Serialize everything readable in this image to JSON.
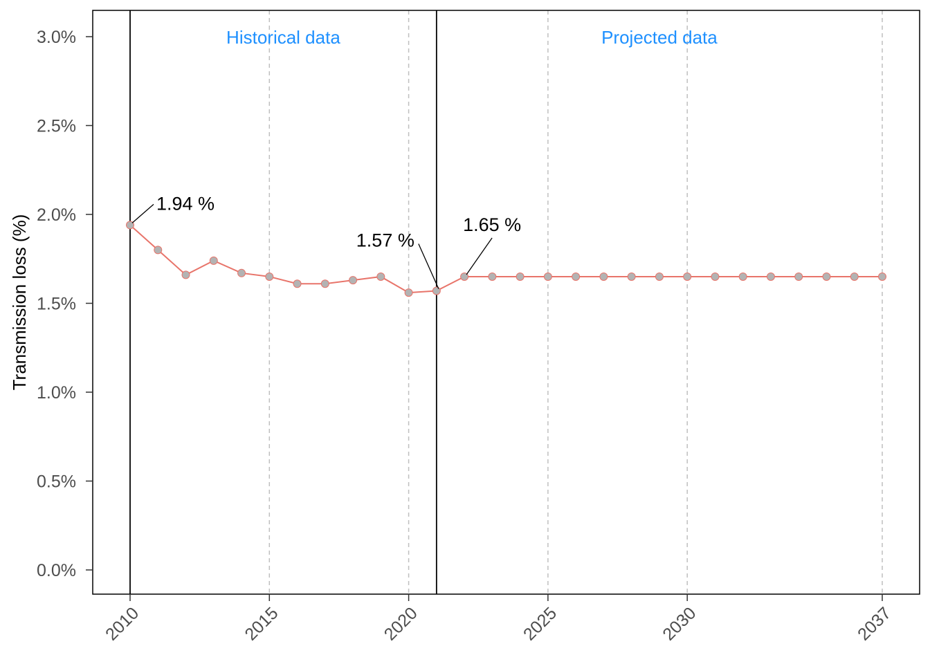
{
  "chart_data": {
    "type": "line",
    "ylabel": "Transmission loss (%)",
    "xlabel": "",
    "title": "",
    "xlim": [
      2010,
      2037
    ],
    "ylim": [
      0.0,
      3.0
    ],
    "x_ticks": [
      2010,
      2015,
      2020,
      2025,
      2030,
      2037
    ],
    "x_tick_labels": [
      "2010",
      "2015",
      "2020",
      "2025",
      "2030",
      "2037"
    ],
    "y_ticks": [
      0.0,
      0.5,
      1.0,
      1.5,
      2.0,
      2.5,
      3.0
    ],
    "y_tick_labels": [
      "0.0%",
      "0.5%",
      "1.0%",
      "1.5%",
      "2.0%",
      "2.5%",
      "3.0%"
    ],
    "grid": "dashed vertical lines at x ticks",
    "regions": [
      {
        "label": "Historical data",
        "from": 2010,
        "to": 2021
      },
      {
        "label": "Projected data",
        "from": 2021,
        "to": 2037
      }
    ],
    "region_label_color": "#1e90ff",
    "boundary_lines": [
      2010,
      2021
    ],
    "series": [
      {
        "line_color": "#e8746a",
        "marker_color": "#b3b3b3",
        "x": [
          2010,
          2011,
          2012,
          2013,
          2014,
          2015,
          2016,
          2017,
          2018,
          2019,
          2020,
          2021,
          2022,
          2023,
          2024,
          2025,
          2026,
          2027,
          2028,
          2029,
          2030,
          2031,
          2032,
          2033,
          2034,
          2035,
          2036,
          2037
        ],
        "values": [
          1.94,
          1.8,
          1.66,
          1.74,
          1.67,
          1.65,
          1.61,
          1.61,
          1.63,
          1.65,
          1.56,
          1.57,
          1.65,
          1.65,
          1.65,
          1.65,
          1.65,
          1.65,
          1.65,
          1.65,
          1.65,
          1.65,
          1.65,
          1.65,
          1.65,
          1.65,
          1.65,
          1.65
        ]
      }
    ],
    "annotations": [
      {
        "text": "1.94 %",
        "x": 2010,
        "y": 1.94
      },
      {
        "text": "1.57 %",
        "x": 2021,
        "y": 1.57
      },
      {
        "text": "1.65 %",
        "x": 2022,
        "y": 1.65
      }
    ]
  }
}
